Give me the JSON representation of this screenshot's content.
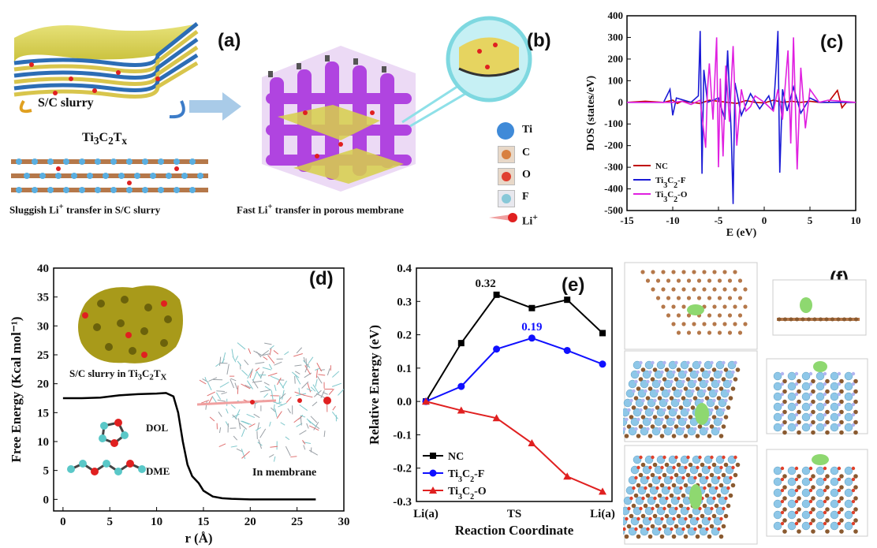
{
  "panels": {
    "a": {
      "label": "(a)",
      "slurry_label": "S/C slurry",
      "mxene_label_html": "Ti3C2Tx",
      "left_caption": "Sluggish Li+ transfer in S/C slurry",
      "center_caption": "Fast Li+ transfer in porous membrane"
    },
    "b": {
      "label": "(b)",
      "legend": [
        "Ti",
        "C",
        "O",
        "F",
        "Li+"
      ]
    },
    "c": {
      "label": "(c)"
    },
    "d": {
      "label": "(d)",
      "inset_caption": "S/C slurry in Ti3C2Tx",
      "dol": "DOL",
      "dme": "DME",
      "membrane": "In membrane"
    },
    "e": {
      "label": "(e)",
      "ann_nc": "0.32",
      "ann_f": "0.19"
    },
    "f": {
      "label": "(f)"
    }
  },
  "colors": {
    "nc": "#c00000",
    "tif": "#1a1ad6",
    "tio": "#e020e0",
    "black": "#000000",
    "blue": "#1010ff",
    "red": "#e02020",
    "purple": "#b044e0",
    "yellow": "#c9c03a",
    "ti": "#8ec7e8",
    "c": "#b5784a",
    "o": "#e0402a",
    "f": "#b0b4f0"
  },
  "chart_data": [
    {
      "type": "line",
      "panel": "c",
      "xlabel": "E (eV)",
      "ylabel": "DOS (states/eV)",
      "xlim": [
        -15,
        10
      ],
      "ylim": [
        -500,
        400
      ],
      "xticks": [
        -15,
        -10,
        -5,
        0,
        5,
        10
      ],
      "yticks": [
        -500,
        -400,
        -300,
        -200,
        -100,
        0,
        100,
        200,
        300,
        400
      ],
      "legend_position": "bottom-left",
      "series": [
        {
          "name": "NC",
          "color": "#c00000",
          "x": [
            -15,
            -13,
            -11,
            -10,
            -9.5,
            -9,
            -8,
            -7,
            -6,
            -5,
            -4,
            -3,
            -2,
            -1,
            0,
            1,
            2,
            3,
            4,
            5,
            6,
            7,
            8,
            8.5,
            9,
            10
          ],
          "y": [
            0,
            5,
            0,
            10,
            -5,
            5,
            0,
            -5,
            10,
            5,
            0,
            -5,
            8,
            0,
            -3,
            10,
            0,
            5,
            0,
            5,
            0,
            0,
            55,
            -25,
            0,
            0
          ]
        },
        {
          "name": "Ti3C2-F",
          "color": "#1a1ad6",
          "x": [
            -15,
            -11,
            -10.3,
            -10,
            -9.6,
            -8,
            -7.2,
            -7.0,
            -6.8,
            -6.6,
            -6.2,
            -5,
            -4.3,
            -4.0,
            -3.6,
            -3.4,
            -3.2,
            -2.5,
            -1.5,
            -0.5,
            0.5,
            1.0,
            1.3,
            1.5,
            1.7,
            2.0,
            2.5,
            3.2,
            4,
            5,
            6,
            7,
            10
          ],
          "y": [
            0,
            0,
            60,
            -60,
            20,
            0,
            30,
            330,
            -330,
            150,
            0,
            20,
            -80,
            240,
            -150,
            -470,
            90,
            -60,
            40,
            -30,
            30,
            -40,
            160,
            330,
            -325,
            60,
            -40,
            70,
            -50,
            20,
            0,
            0,
            0
          ]
        },
        {
          "name": "Ti3C2-O",
          "color": "#e020e0",
          "x": [
            -15,
            -10,
            -9,
            -8,
            -7,
            -6.4,
            -6.2,
            -6.0,
            -5.6,
            -5.2,
            -5.0,
            -4.8,
            -4.5,
            -4.2,
            -3.8,
            -3.4,
            -3.0,
            -2.5,
            -2.0,
            -1.5,
            -1,
            0,
            1.0,
            1.5,
            2.0,
            2.6,
            2.9,
            3.2,
            3.6,
            4.0,
            4.5,
            5,
            6,
            7,
            10
          ],
          "y": [
            0,
            0,
            5,
            -10,
            10,
            -210,
            60,
            180,
            -80,
            300,
            -300,
            110,
            -250,
            170,
            -90,
            260,
            -200,
            60,
            -40,
            -20,
            30,
            0,
            -40,
            60,
            -80,
            240,
            -190,
            300,
            -310,
            160,
            -120,
            60,
            0,
            10,
            0
          ]
        }
      ]
    },
    {
      "type": "line",
      "panel": "d",
      "xlabel": "r (Å)",
      "ylabel": "Free Energy (Kcal mol⁻¹)",
      "xlim": [
        -1,
        30
      ],
      "ylim": [
        -2,
        40
      ],
      "xticks": [
        0,
        5,
        10,
        15,
        20,
        25,
        30
      ],
      "yticks": [
        0,
        5,
        10,
        15,
        20,
        25,
        30,
        35,
        40
      ],
      "series": [
        {
          "name": "",
          "color": "#000000",
          "x": [
            0,
            2,
            4,
            6,
            8,
            10,
            11,
            11.8,
            12.3,
            12.8,
            13.3,
            13.8,
            14.5,
            15,
            16,
            17,
            18,
            20,
            22,
            25,
            27
          ],
          "y": [
            17.5,
            17.5,
            17.6,
            18.0,
            18.2,
            18.3,
            18.4,
            17.8,
            15.0,
            10.0,
            6.0,
            4.0,
            2.8,
            1.5,
            0.5,
            0.2,
            0.1,
            0,
            0,
            0,
            0
          ]
        }
      ]
    },
    {
      "type": "line",
      "panel": "e",
      "xlabel": "Reaction Coordinate",
      "ylabel": "Relative Energy (eV)",
      "categories": [
        "Li(a)",
        "TS",
        "Li(a)"
      ],
      "ylim": [
        -0.3,
        0.4
      ],
      "yticks": [
        -0.3,
        -0.2,
        -0.1,
        0.0,
        0.1,
        0.2,
        0.3,
        0.4
      ],
      "legend_position": "bottom-left",
      "series": [
        {
          "name": "NC",
          "color": "#000000",
          "marker": "square",
          "x": [
            0,
            1,
            2,
            3,
            4,
            5
          ],
          "y": [
            0,
            0.175,
            0.32,
            0.28,
            0.305,
            0.205
          ]
        },
        {
          "name": "Ti3C2-F",
          "color": "#1010ff",
          "marker": "circle",
          "x": [
            0,
            1,
            2,
            3,
            4,
            5
          ],
          "y": [
            0,
            0.045,
            0.157,
            0.19,
            0.153,
            0.112
          ]
        },
        {
          "name": "Ti3C2-O",
          "color": "#e02020",
          "marker": "triangle",
          "x": [
            0,
            1,
            2,
            3,
            4,
            5
          ],
          "y": [
            0,
            -0.027,
            -0.05,
            -0.125,
            -0.225,
            -0.27
          ]
        }
      ]
    }
  ]
}
